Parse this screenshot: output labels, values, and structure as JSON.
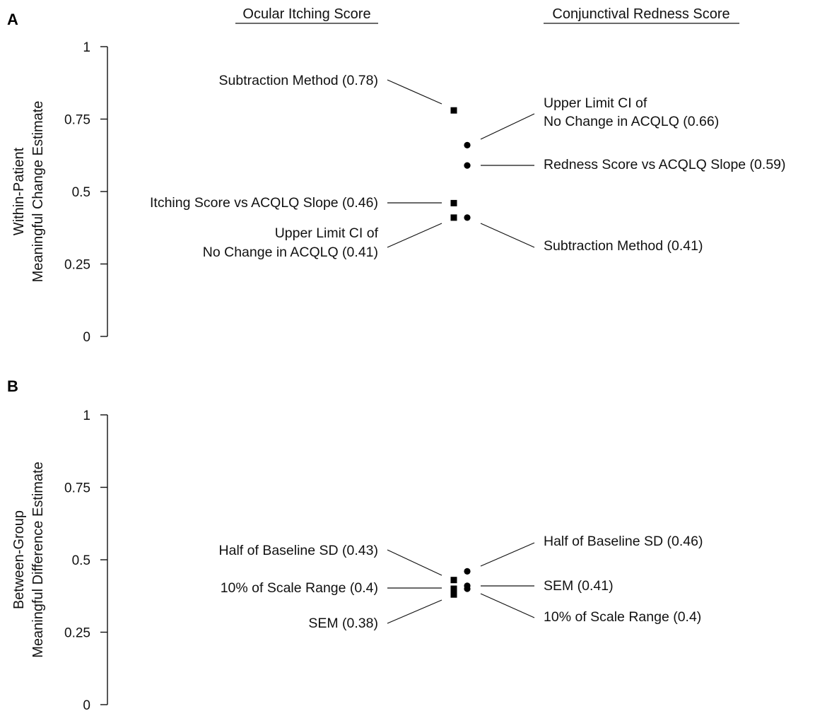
{
  "headers": {
    "left": "Ocular Itching Score",
    "right": "Conjunctival Redness Score"
  },
  "chart_data": [
    {
      "panel": "A",
      "type": "scatter",
      "ylabel_lines": [
        "Within-Patient",
        "Meaningful Change Estimate"
      ],
      "ylim": [
        0,
        1
      ],
      "yticks": [
        0,
        0.25,
        0.5,
        0.75,
        1
      ],
      "ytick_labels": [
        "0",
        "0.25",
        "0.5",
        "0.75",
        "1"
      ],
      "series": [
        {
          "name": "Ocular Itching Score",
          "marker": "square",
          "points": [
            {
              "y": 0.78,
              "label": [
                "Subtraction Method (0.78)"
              ]
            },
            {
              "y": 0.46,
              "label": [
                "Itching Score vs ACQLQ Slope (0.46)"
              ]
            },
            {
              "y": 0.41,
              "label": [
                "Upper Limit CI of",
                "No Change in ACQLQ (0.41)"
              ]
            }
          ]
        },
        {
          "name": "Conjunctival Redness Score",
          "marker": "circle",
          "points": [
            {
              "y": 0.66,
              "label": [
                "Upper Limit CI of",
                "No Change in ACQLQ (0.66)"
              ]
            },
            {
              "y": 0.59,
              "label": [
                "Redness Score vs ACQLQ Slope (0.59)"
              ]
            },
            {
              "y": 0.41,
              "label": [
                "Subtraction Method (0.41)"
              ]
            }
          ]
        }
      ]
    },
    {
      "panel": "B",
      "type": "scatter",
      "ylabel_lines": [
        "Between-Group",
        "Meaningful Difference Estimate"
      ],
      "ylim": [
        0,
        1
      ],
      "yticks": [
        0,
        0.25,
        0.5,
        0.75,
        1
      ],
      "ytick_labels": [
        "0",
        "0.25",
        "0.5",
        "0.75",
        "1"
      ],
      "series": [
        {
          "name": "Ocular Itching Score",
          "marker": "square",
          "points": [
            {
              "y": 0.43,
              "label": [
                "Half of Baseline SD (0.43)"
              ]
            },
            {
              "y": 0.4,
              "label": [
                "10% of Scale Range (0.4)"
              ]
            },
            {
              "y": 0.38,
              "label": [
                "SEM (0.38)"
              ]
            }
          ]
        },
        {
          "name": "Conjunctival Redness Score",
          "marker": "circle",
          "points": [
            {
              "y": 0.46,
              "label": [
                "Half of Baseline SD (0.46)"
              ]
            },
            {
              "y": 0.41,
              "label": [
                "SEM (0.41)"
              ]
            },
            {
              "y": 0.4,
              "label": [
                "10% of Scale Range (0.4)"
              ]
            }
          ]
        }
      ]
    }
  ]
}
